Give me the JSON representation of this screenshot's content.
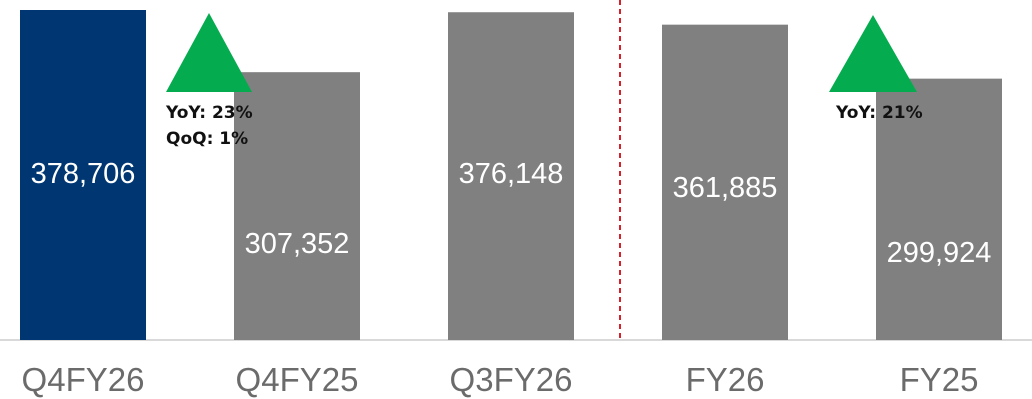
{
  "chart_data": {
    "type": "bar",
    "categories": [
      "Q4FY26",
      "Q4FY25",
      "Q3FY26",
      "FY26",
      "FY25"
    ],
    "values": [
      378706,
      307352,
      376148,
      361885,
      299924
    ],
    "value_labels": [
      "378,706",
      "307,352",
      "376,148",
      "361,885",
      "299,924"
    ],
    "highlight_index": 0,
    "title": "",
    "xlabel": "",
    "ylabel": "",
    "grid": false,
    "divider_after_index": 2,
    "annotations": [
      {
        "lines": [
          "YoY: 23%",
          "QoQ: 1%"
        ],
        "marker": "up-triangle",
        "after_index": 0
      },
      {
        "lines": [
          "YoY: 21%"
        ],
        "marker": "up-triangle",
        "after_index": 3
      }
    ]
  },
  "colors": {
    "highlight": "#003671",
    "bar": "#808080",
    "up": "#05ab4f",
    "divider": "#d8202a",
    "axis": "#d9d9d9",
    "category_text": "#6b6b6b",
    "annotation_text": "#111111",
    "value_text": "#ffffff"
  }
}
